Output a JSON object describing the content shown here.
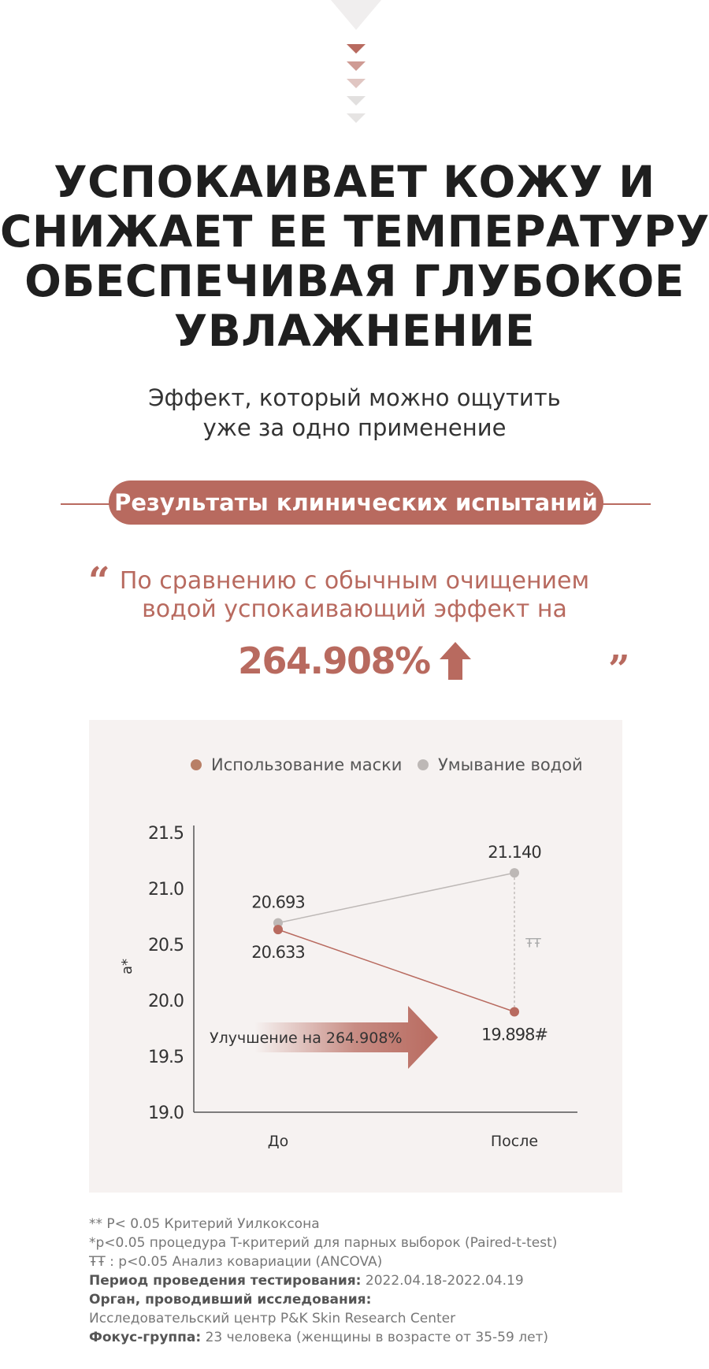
{
  "headline": {
    "lines": [
      "УСПОКАИВАЕТ КОЖУ И",
      "СНИЖАЕТ ЕЕ ТЕМПЕРАТУРУ,",
      "ОБЕСПЕЧИВАЯ ГЛУБОКОЕ",
      "УВЛАЖНЕНИЕ"
    ]
  },
  "subtitle": {
    "lines": [
      "Эффект, который можно ощутить",
      "уже за одно применение"
    ]
  },
  "section_pill": "Результаты клинических испытаний",
  "quote": {
    "open_mark": "“",
    "close_mark": "”",
    "lines": [
      "По сравнению с обычным очищением",
      "водой успокаивающий эффект на"
    ],
    "value": "264.908%"
  },
  "colors": {
    "accent": "#b86a5f",
    "mask_series": "#b86a5f",
    "water_series": "#bdb8b6",
    "panel_bg": "#f6f2f1"
  },
  "icons": {
    "top_decoration": "chevron-down-stack-icon",
    "highlight": "up-arrow-icon",
    "improvement": "right-arrow-icon"
  },
  "chart_data": {
    "type": "line",
    "title": "",
    "xlabel": "",
    "ylabel": "a*",
    "categories": [
      "До",
      "После"
    ],
    "ylim": [
      19.0,
      21.5
    ],
    "yticks": [
      "21.5",
      "21.0",
      "20.5",
      "20.0",
      "19.5",
      "19.0"
    ],
    "legend_position": "top",
    "grid": false,
    "series": [
      {
        "name": "Использование маски",
        "values": [
          20.633,
          19.898
        ],
        "labels": [
          "20.633",
          "19.898#"
        ]
      },
      {
        "name": "Умывание водой",
        "values": [
          20.693,
          21.14
        ],
        "labels": [
          "20.693",
          "21.140"
        ]
      }
    ],
    "significance_marker": "ŦŦ",
    "improvement_label": {
      "prefix": "Улучшение на ",
      "value": "264.908%"
    }
  },
  "footnotes": {
    "line1": "** P< 0.05 Критерий Уилкоксона",
    "line2": "*p<0.05 процедура T-критерий для парных выборок (Paired-t-test)",
    "line3": "ŦŦ : p<0.05 Анализ ковариации (ANCOVA)",
    "period_label": "Период проведения тестирования:",
    "period_value": " 2022.04.18-2022.04.19",
    "org_label": "Орган, проводивший исследования:",
    "org_value": "Исследовательский центр P&K Skin Research Center",
    "focus_label": "Фокус-группа:",
    "focus_value": " 23 человека (женщины в возрасте от 35-59 лет)"
  }
}
